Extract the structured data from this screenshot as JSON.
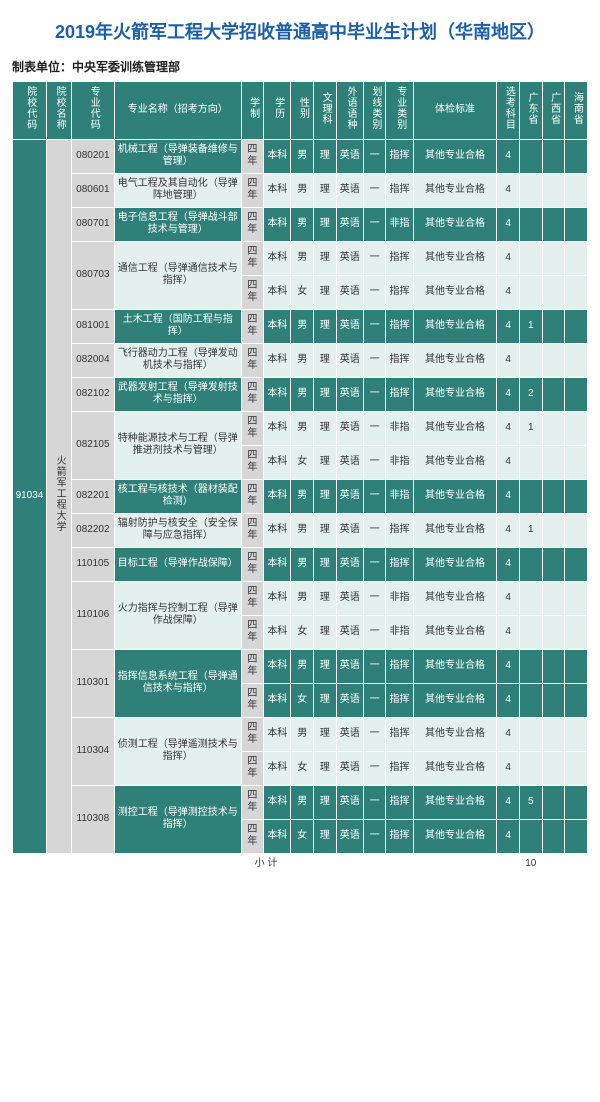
{
  "title": "2019年火箭军工程大学招收普通高中毕业生计划（华南地区）",
  "subtitle_label": "制表单位：",
  "subtitle_value": "中央军委训练管理部",
  "columns": {
    "col_code": "院校代码",
    "school": "院校名称",
    "major_code": "专业代码",
    "major_name": "专业名称（招考方向）",
    "years": "学制",
    "degree": "学历",
    "gender": "性别",
    "sci": "文理科",
    "lang": "外语语种",
    "line": "划线类别",
    "type": "专业类别",
    "health": "体检标准",
    "exam": "选考科目",
    "p1": "广东省",
    "p2": "广西省",
    "p3": "海南省"
  },
  "school_code": "91034",
  "school_name": "火箭军工程大学",
  "subtotal_label": "小        计",
  "subtotal_total": "10",
  "common": {
    "four_year": "四年",
    "benke": "本科",
    "male": "男",
    "female": "女",
    "li": "理",
    "eng": "英语",
    "one": "一",
    "zhihui": "指挥",
    "feizhi": "非指",
    "health_ok": "其他专业合格",
    "four": "4"
  },
  "rows": [
    {
      "mc": "080201",
      "mn": "机械工程（导弹装备维修与管理）",
      "g": "男",
      "t": "指挥",
      "p1": "4",
      "dk": true
    },
    {
      "mc": "080601",
      "mn": "电气工程及其自动化（导弹阵地管理）",
      "g": "男",
      "t": "指挥",
      "p1": "4",
      "dk": false
    },
    {
      "mc": "080701",
      "mn": "电子信息工程（导弹战斗部技术与管理）",
      "g": "男",
      "t": "非指",
      "p1": "4",
      "dk": true
    },
    {
      "mc": "080703",
      "mn": "通信工程（导弹通信技术与指挥）",
      "g": "男",
      "t": "指挥",
      "p1": "4",
      "dk": false,
      "span": 2
    },
    {
      "g": "女",
      "t": "指挥",
      "p1": "4",
      "dk": false,
      "cont": true
    },
    {
      "mc": "081001",
      "mn": "土木工程（国防工程与指挥）",
      "g": "男",
      "t": "指挥",
      "p1": "4",
      "p2": "1",
      "dk": true
    },
    {
      "mc": "082004",
      "mn": "飞行器动力工程（导弹发动机技术与指挥）",
      "g": "男",
      "t": "指挥",
      "p1": "4",
      "dk": false
    },
    {
      "mc": "082102",
      "mn": "武器发射工程（导弹发射技术与指挥）",
      "g": "男",
      "t": "指挥",
      "p1": "4",
      "p2": "2",
      "dk": true
    },
    {
      "mc": "082105",
      "mn": "特种能源技术与工程（导弹推进剂技术与管理）",
      "g": "男",
      "t": "非指",
      "p1": "4",
      "p2": "1",
      "dk": false,
      "span": 2
    },
    {
      "g": "女",
      "t": "非指",
      "p1": "4",
      "dk": false,
      "cont": true
    },
    {
      "mc": "082201",
      "mn": "核工程与核技术（器材装配检测）",
      "g": "男",
      "t": "非指",
      "p1": "4",
      "dk": true
    },
    {
      "mc": "082202",
      "mn": "辐射防护与核安全（安全保障与应急指挥）",
      "g": "男",
      "t": "指挥",
      "p1": "4",
      "p2": "1",
      "dk": false
    },
    {
      "mc": "110105",
      "mn": "目标工程（导弹作战保障）",
      "g": "男",
      "t": "指挥",
      "p1": "4",
      "dk": true
    },
    {
      "mc": "110106",
      "mn": "火力指挥与控制工程（导弹作战保障）",
      "g": "男",
      "t": "非指",
      "p1": "4",
      "dk": false,
      "span": 2
    },
    {
      "g": "女",
      "t": "非指",
      "p1": "4",
      "dk": false,
      "cont": true
    },
    {
      "mc": "110301",
      "mn": "指挥信息系统工程（导弹通信技术与指挥）",
      "g": "男",
      "t": "指挥",
      "p1": "4",
      "dk": true,
      "span": 2
    },
    {
      "g": "女",
      "t": "指挥",
      "p1": "4",
      "dk": true,
      "cont": true
    },
    {
      "mc": "110304",
      "mn": "侦测工程（导弹遥测技术与指挥）",
      "g": "男",
      "t": "指挥",
      "p1": "4",
      "dk": false,
      "span": 2
    },
    {
      "g": "女",
      "t": "指挥",
      "p1": "4",
      "dk": false,
      "cont": true
    },
    {
      "mc": "110308",
      "mn": "测控工程（导弹测控技术与指挥）",
      "g": "男",
      "t": "指挥",
      "p1": "4",
      "p2": "5",
      "dk": true,
      "span": 2
    },
    {
      "g": "女",
      "t": "指挥",
      "p1": "4",
      "dk": true,
      "cont": true
    }
  ]
}
